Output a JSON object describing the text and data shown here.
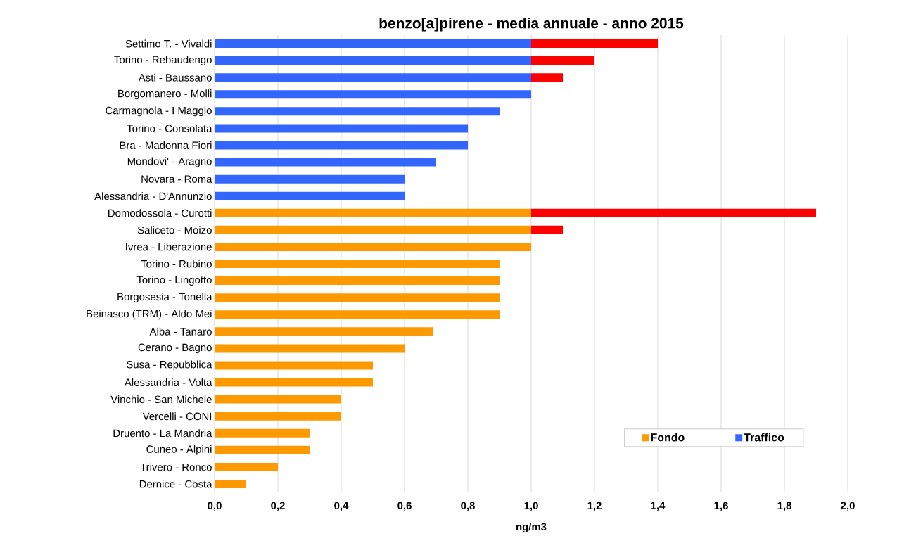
{
  "chart_data": {
    "type": "bar",
    "orientation": "horizontal",
    "stacked": true,
    "title": "benzo[a]pirene - media annuale - anno 2015",
    "xlabel": "ng/m3",
    "categories": [
      "Settimo T. - Vivaldi",
      "Torino - Rebaudengo",
      "Asti - Baussano",
      "Borgomanero - Molli",
      "Carmagnola -  I Maggio",
      "Torino - Consolata",
      "Bra - Madonna Fiori",
      "Mondovi' - Aragno",
      "Novara - Roma",
      "Alessandria - D'Annunzio",
      "Domodossola - Curotti",
      "Saliceto - Moizo",
      "Ivrea - Liberazione",
      "Torino - Rubino",
      "Torino - Lingotto",
      "Borgosesia - Tonella",
      "Beinasco (TRM) - Aldo Mei",
      "Alba - Tanaro",
      "Cerano - Bagno",
      "Susa - Repubblica",
      "Alessandria - Volta",
      "Vinchio - San Michele",
      "Vercelli - CONI",
      "Druento - La Mandria",
      "Cuneo - Alpini",
      "Trivero - Ronco",
      "Dernice - Costa"
    ],
    "series": [
      {
        "name": "Fondo",
        "color": "#ff9900",
        "values": [
          null,
          null,
          null,
          null,
          null,
          null,
          null,
          null,
          null,
          null,
          1.0,
          1.0,
          1.0,
          0.9,
          0.9,
          0.9,
          0.9,
          0.69,
          0.6,
          0.5,
          0.5,
          0.4,
          0.4,
          0.3,
          0.3,
          0.2,
          0.1
        ]
      },
      {
        "name": "Traffico",
        "color": "#3366ff",
        "values": [
          1.0,
          1.0,
          1.0,
          1.0,
          0.9,
          0.8,
          0.8,
          0.7,
          0.6,
          0.6,
          null,
          null,
          null,
          null,
          null,
          null,
          null,
          null,
          null,
          null,
          null,
          null,
          null,
          null,
          null,
          null,
          null
        ]
      },
      {
        "color": "#ff0000",
        "values": [
          0.4,
          0.2,
          0.1,
          null,
          null,
          null,
          null,
          null,
          null,
          null,
          0.9,
          0.1,
          null,
          null,
          null,
          null,
          null,
          null,
          null,
          null,
          null,
          null,
          null,
          null,
          null,
          null,
          null
        ]
      }
    ],
    "xlim": [
      0,
      2
    ],
    "xticks": [
      {
        "value": 0,
        "label": "0,0"
      },
      {
        "value": 0.2,
        "label": "0,2"
      },
      {
        "value": 0.4,
        "label": "0,4"
      },
      {
        "value": 0.6,
        "label": "0,6"
      },
      {
        "value": 0.8,
        "label": "0,8"
      },
      {
        "value": 1.0,
        "label": "1,0"
      },
      {
        "value": 1.2,
        "label": "1,2"
      },
      {
        "value": 1.4,
        "label": "1,4"
      },
      {
        "value": 1.6,
        "label": "1,6"
      },
      {
        "value": 1.8,
        "label": "1,8"
      },
      {
        "value": 2.0,
        "label": "2,0"
      }
    ],
    "grid": "x",
    "legend": "bottom right"
  }
}
